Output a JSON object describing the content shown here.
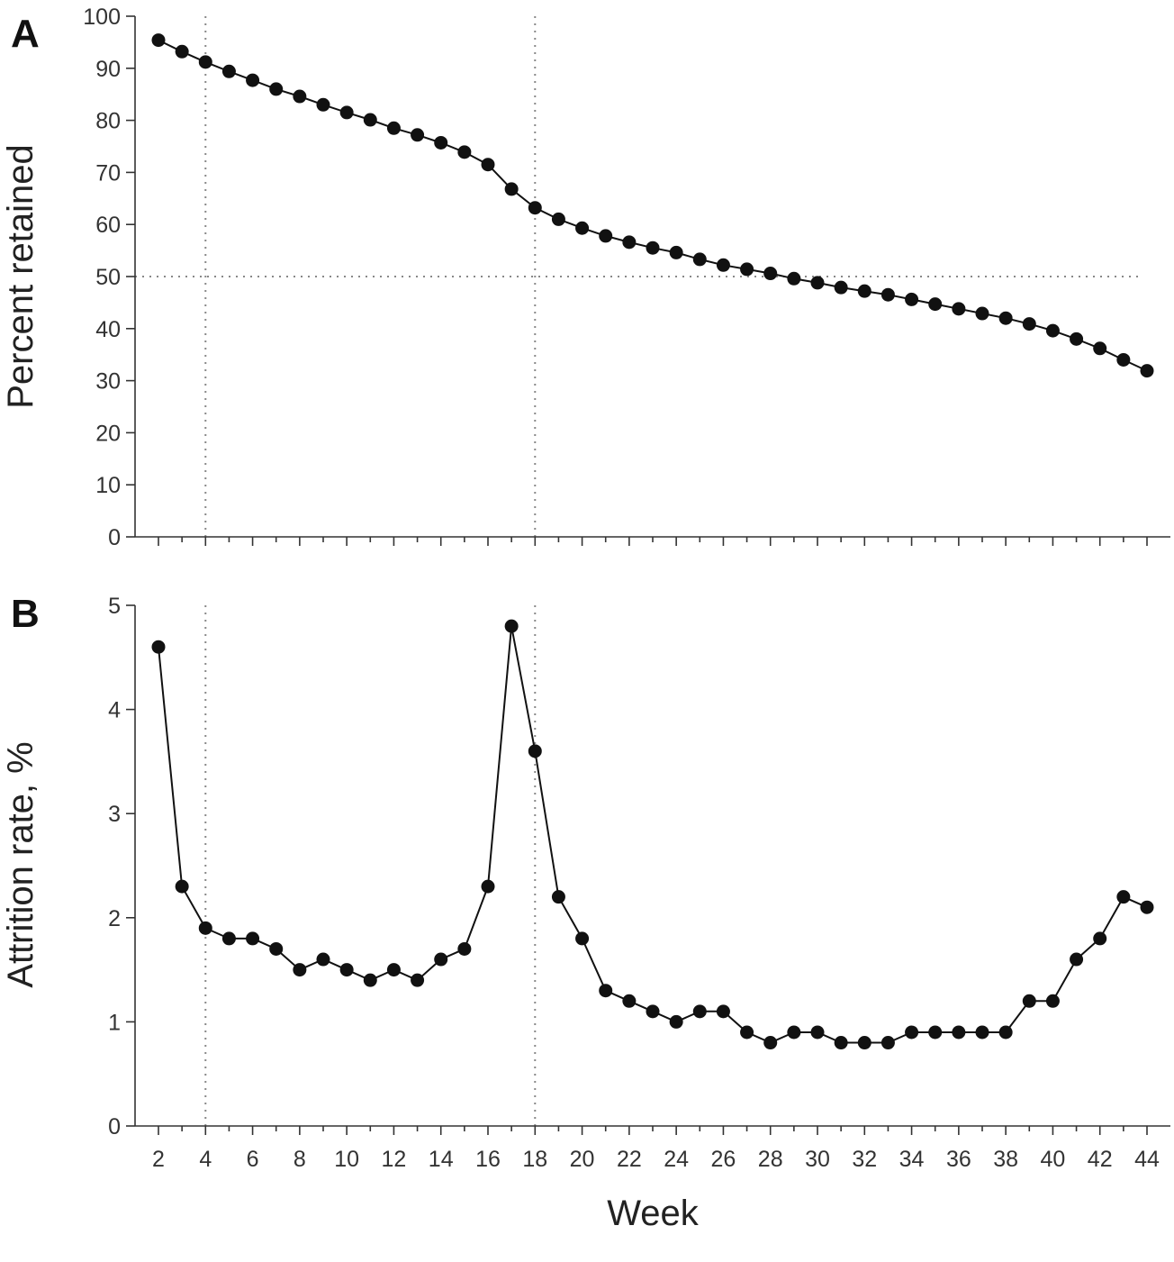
{
  "figure": {
    "xlabel": "Week"
  },
  "chart_data": [
    {
      "type": "line",
      "panel": "A",
      "title": "",
      "xlabel": "Week",
      "ylabel": "Percent retained",
      "xlim": [
        2,
        44
      ],
      "ylim": [
        0,
        100
      ],
      "yticks": [
        0,
        10,
        20,
        30,
        40,
        50,
        60,
        70,
        80,
        90,
        100
      ],
      "xticks": [
        2,
        4,
        6,
        8,
        10,
        12,
        14,
        16,
        18,
        20,
        22,
        24,
        26,
        28,
        30,
        32,
        34,
        36,
        38,
        40,
        42,
        44
      ],
      "reference_lines": {
        "vertical_x": [
          4,
          18
        ],
        "horizontal_y": [
          50
        ]
      },
      "grid": false,
      "series": [
        {
          "x": [
            2,
            3,
            4,
            5,
            6,
            7,
            8,
            9,
            10,
            11,
            12,
            13,
            14,
            15,
            16,
            17,
            18,
            19,
            20,
            21,
            22,
            23,
            24,
            25,
            26,
            27,
            28,
            29,
            30,
            31,
            32,
            33,
            34,
            35,
            36,
            37,
            38,
            39,
            40,
            41,
            42,
            43,
            44
          ],
          "values": [
            95.4,
            93.2,
            91.2,
            89.4,
            87.7,
            86.0,
            84.6,
            83.0,
            81.5,
            80.1,
            78.5,
            77.2,
            75.7,
            73.9,
            71.5,
            66.8,
            63.2,
            61.0,
            59.3,
            57.8,
            56.6,
            55.5,
            54.6,
            53.3,
            52.2,
            51.4,
            50.6,
            49.6,
            48.8,
            47.9,
            47.2,
            46.5,
            45.6,
            44.7,
            43.8,
            42.9,
            42.0,
            40.9,
            39.6,
            38.0,
            36.2,
            34.0,
            31.9
          ]
        }
      ]
    },
    {
      "type": "line",
      "panel": "B",
      "title": "",
      "xlabel": "Week",
      "ylabel": "Attrition rate, %",
      "xlim": [
        2,
        44
      ],
      "ylim": [
        0,
        5
      ],
      "yticks": [
        0,
        1,
        2,
        3,
        4,
        5
      ],
      "xticks": [
        2,
        4,
        6,
        8,
        10,
        12,
        14,
        16,
        18,
        20,
        22,
        24,
        26,
        28,
        30,
        32,
        34,
        36,
        38,
        40,
        42,
        44
      ],
      "reference_lines": {
        "vertical_x": [
          4,
          18
        ],
        "horizontal_y": []
      },
      "grid": false,
      "series": [
        {
          "x": [
            2,
            3,
            4,
            5,
            6,
            7,
            8,
            9,
            10,
            11,
            12,
            13,
            14,
            15,
            16,
            17,
            18,
            19,
            20,
            21,
            22,
            23,
            24,
            25,
            26,
            27,
            28,
            29,
            30,
            31,
            32,
            33,
            34,
            35,
            36,
            37,
            38,
            39,
            40,
            41,
            42,
            43,
            44
          ],
          "values": [
            4.6,
            2.3,
            1.9,
            1.8,
            1.8,
            1.7,
            1.5,
            1.6,
            1.5,
            1.4,
            1.5,
            1.4,
            1.6,
            1.7,
            2.3,
            4.8,
            3.6,
            2.2,
            1.8,
            1.3,
            1.2,
            1.1,
            1.0,
            1.1,
            1.1,
            0.9,
            0.8,
            0.9,
            0.9,
            0.8,
            0.8,
            0.8,
            0.9,
            0.9,
            0.9,
            0.9,
            0.9,
            1.2,
            1.2,
            1.6,
            1.8,
            2.2,
            2.1
          ]
        }
      ]
    }
  ]
}
